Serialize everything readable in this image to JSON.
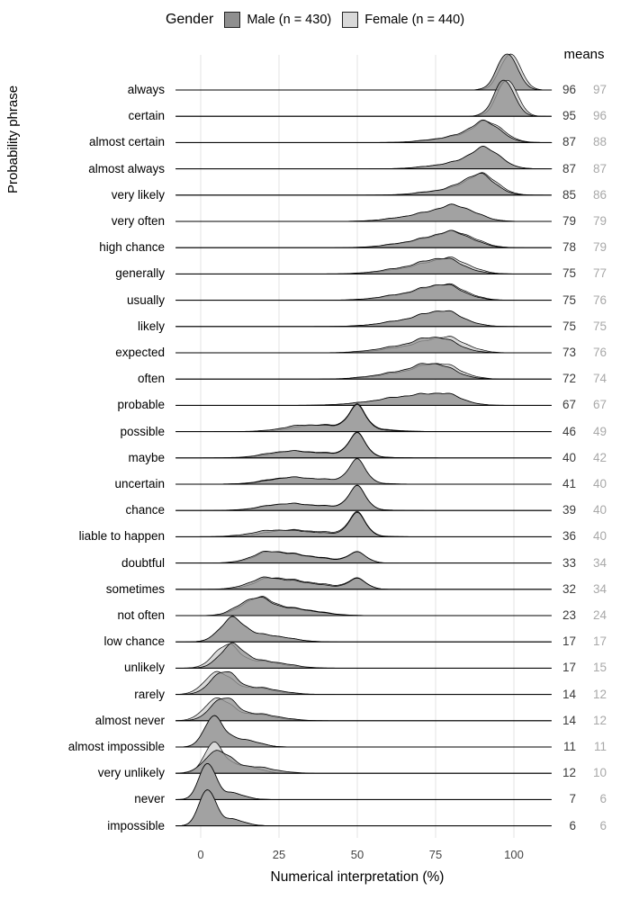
{
  "chart_data": {
    "type": "area",
    "subtype": "ridgeline-density-by-group",
    "title": "",
    "xlabel": "Numerical interpretation (%)",
    "ylabel": "Probability phrase",
    "means_header": "means",
    "x_ticks": [
      0,
      25,
      50,
      75,
      100
    ],
    "xlim": [
      -8,
      112
    ],
    "grid": "vertical-only",
    "legend": {
      "title": "Gender",
      "position": "top",
      "entries": [
        {
          "label": "Male (n = 430)",
          "color": "#8f8f8f"
        },
        {
          "label": "Female (n = 440)",
          "color": "#d9d9d9"
        }
      ]
    },
    "colors": {
      "male_fill": "#929292",
      "female_fill": "#d9d9d9",
      "stroke": "#000000",
      "baseline": "#000000",
      "grid": "#e3e3e3",
      "mean_male_text": "#3b3b3b",
      "mean_female_text": "#a8a8a8",
      "axis_text": "#444444"
    },
    "rows": [
      {
        "phrase": "always",
        "male_mean": 96,
        "female_mean": 97
      },
      {
        "phrase": "certain",
        "male_mean": 95,
        "female_mean": 96
      },
      {
        "phrase": "almost certain",
        "male_mean": 87,
        "female_mean": 88
      },
      {
        "phrase": "almost always",
        "male_mean": 87,
        "female_mean": 87
      },
      {
        "phrase": "very likely",
        "male_mean": 85,
        "female_mean": 86
      },
      {
        "phrase": "very often",
        "male_mean": 79,
        "female_mean": 79
      },
      {
        "phrase": "high chance",
        "male_mean": 78,
        "female_mean": 79
      },
      {
        "phrase": "generally",
        "male_mean": 75,
        "female_mean": 77
      },
      {
        "phrase": "usually",
        "male_mean": 75,
        "female_mean": 76
      },
      {
        "phrase": "likely",
        "male_mean": 75,
        "female_mean": 75
      },
      {
        "phrase": "expected",
        "male_mean": 73,
        "female_mean": 76
      },
      {
        "phrase": "often",
        "male_mean": 72,
        "female_mean": 74
      },
      {
        "phrase": "probable",
        "male_mean": 67,
        "female_mean": 67
      },
      {
        "phrase": "possible",
        "male_mean": 46,
        "female_mean": 49
      },
      {
        "phrase": "maybe",
        "male_mean": 40,
        "female_mean": 42
      },
      {
        "phrase": "uncertain",
        "male_mean": 41,
        "female_mean": 40
      },
      {
        "phrase": "chance",
        "male_mean": 39,
        "female_mean": 40
      },
      {
        "phrase": "liable to happen",
        "male_mean": 36,
        "female_mean": 40
      },
      {
        "phrase": "doubtful",
        "male_mean": 33,
        "female_mean": 34
      },
      {
        "phrase": "sometimes",
        "male_mean": 32,
        "female_mean": 34
      },
      {
        "phrase": "not often",
        "male_mean": 23,
        "female_mean": 24
      },
      {
        "phrase": "low chance",
        "male_mean": 17,
        "female_mean": 17
      },
      {
        "phrase": "unlikely",
        "male_mean": 17,
        "female_mean": 15
      },
      {
        "phrase": "rarely",
        "male_mean": 14,
        "female_mean": 12
      },
      {
        "phrase": "almost never",
        "male_mean": 14,
        "female_mean": 12
      },
      {
        "phrase": "almost impossible",
        "male_mean": 11,
        "female_mean": 11
      },
      {
        "phrase": "very unlikely",
        "male_mean": 12,
        "female_mean": 10
      },
      {
        "phrase": "never",
        "male_mean": 7,
        "female_mean": 6
      },
      {
        "phrase": "impossible",
        "male_mean": 6,
        "female_mean": 6
      }
    ]
  }
}
